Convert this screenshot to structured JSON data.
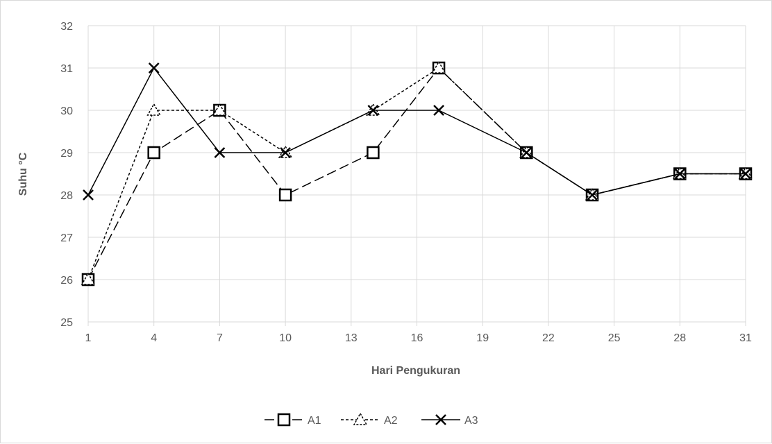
{
  "chart_data": {
    "type": "line",
    "title": "",
    "xlabel": "Hari Pengukuran",
    "ylabel": "Suhu °C",
    "x_ticks": [
      "1",
      "4",
      "7",
      "10",
      "13",
      "16",
      "19",
      "22",
      "25",
      "28",
      "31"
    ],
    "y_ticks": [
      "25",
      "26",
      "27",
      "28",
      "29",
      "30",
      "31",
      "32"
    ],
    "xlim": [
      1,
      31
    ],
    "ylim": [
      25,
      32
    ],
    "grid": true,
    "legend_position": "bottom",
    "x": [
      1,
      4,
      7,
      10,
      14,
      17,
      21,
      24,
      28,
      31
    ],
    "series": [
      {
        "name": "A1",
        "values": [
          26,
          29,
          30,
          28,
          29,
          31,
          29,
          28,
          28.5,
          28.5
        ],
        "line_style": "dashed",
        "marker": "square",
        "color": "#000000"
      },
      {
        "name": "A2",
        "values": [
          26,
          30,
          30,
          29,
          30,
          31,
          29,
          28,
          28.5,
          28.5
        ],
        "line_style": "dotted",
        "marker": "triangle",
        "color": "#000000"
      },
      {
        "name": "A3",
        "values": [
          28,
          31,
          29,
          29,
          30,
          30,
          29,
          28,
          28.5,
          28.5
        ],
        "line_style": "solid",
        "marker": "x",
        "color": "#000000"
      }
    ],
    "grid_color": "#d9d9d9",
    "text_color": "#595959"
  }
}
